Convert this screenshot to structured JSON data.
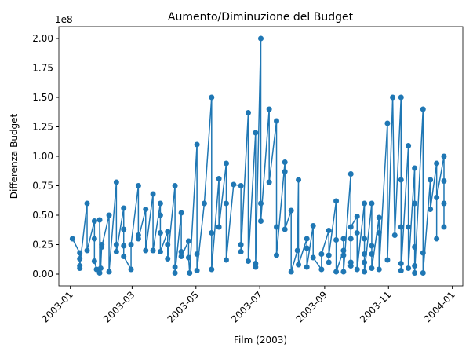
{
  "chart_data": {
    "type": "line",
    "title": "Aumento/Diminuzione del Budget",
    "xlabel": "Film (2003)",
    "ylabel": "Differenza Budget",
    "y_offset_text": "1e8",
    "x": [
      2,
      9,
      9,
      9,
      9,
      16,
      16,
      23,
      23,
      23,
      25,
      28,
      28,
      29,
      30,
      30,
      37,
      37,
      44,
      44,
      44,
      51,
      51,
      51,
      51,
      58,
      58,
      65,
      65,
      65,
      72,
      72,
      79,
      79,
      86,
      86,
      86,
      86,
      93,
      93,
      93,
      100,
      100,
      100,
      106,
      106,
      106,
      113,
      113,
      114,
      121,
      121,
      121,
      128,
      135,
      135,
      135,
      142,
      142,
      149,
      149,
      149,
      156,
      163,
      163,
      163,
      170,
      170,
      177,
      177,
      177,
      182,
      182,
      182,
      190,
      190,
      197,
      197,
      197,
      205,
      205,
      205,
      211,
      211,
      217,
      218,
      218,
      226,
      226,
      226,
      232,
      232,
      240,
      240,
      247,
      247,
      247,
      254,
      254,
      254,
      261,
      261,
      261,
      261,
      268,
      268,
      268,
      268,
      268,
      274,
      274,
      274,
      281,
      281,
      281,
      281,
      281,
      288,
      288,
      288,
      288,
      295,
      295,
      295,
      303,
      303,
      308,
      310,
      316,
      316,
      316,
      316,
      316,
      323,
      323,
      323,
      329,
      329,
      329,
      329,
      329,
      337,
      337,
      337,
      344,
      344,
      350,
      350,
      350,
      357,
      357,
      357,
      357
    ],
    "series": [
      {
        "name": "Differenza Budget",
        "color": "#1f77b4",
        "values": [
          0.3,
          0.18,
          0.13,
          0.05,
          0.07,
          0.6,
          0.2,
          0.45,
          0.3,
          0.11,
          0.04,
          0.01,
          0.46,
          0.05,
          0.25,
          0.23,
          0.5,
          0.02,
          0.78,
          0.25,
          0.19,
          0.56,
          0.38,
          0.24,
          0.15,
          0.04,
          0.25,
          0.75,
          0.33,
          0.3,
          0.55,
          0.2,
          0.68,
          0.2,
          0.6,
          0.5,
          0.35,
          0.19,
          0.36,
          0.25,
          0.13,
          0.75,
          0.06,
          0.01,
          0.52,
          0.19,
          0.15,
          0.28,
          0.14,
          0.01,
          1.1,
          0.17,
          0.03,
          0.6,
          1.5,
          0.35,
          0.04,
          0.81,
          0.4,
          0.94,
          0.6,
          0.12,
          0.76,
          0.75,
          0.25,
          0.19,
          1.37,
          0.11,
          1.2,
          0.09,
          0.06,
          2.0,
          0.6,
          0.45,
          1.4,
          0.78,
          1.3,
          0.4,
          0.16,
          0.95,
          0.87,
          0.38,
          0.54,
          0.02,
          0.2,
          0.8,
          0.08,
          0.3,
          0.22,
          0.06,
          0.41,
          0.14,
          0.04,
          0.17,
          0.37,
          0.1,
          0.16,
          0.62,
          0.29,
          0.02,
          0.2,
          0.3,
          0.16,
          0.02,
          0.85,
          0.3,
          0.1,
          0.07,
          0.4,
          0.49,
          0.35,
          0.04,
          0.6,
          0.3,
          0.17,
          0.1,
          0.02,
          0.6,
          0.24,
          0.17,
          0.05,
          0.48,
          0.35,
          0.04,
          1.28,
          0.12,
          1.5,
          0.33,
          1.5,
          0.8,
          0.4,
          0.09,
          0.03,
          1.09,
          0.4,
          0.05,
          0.9,
          0.6,
          0.23,
          0.07,
          0.01,
          1.4,
          0.18,
          0.01,
          0.8,
          0.55,
          0.94,
          0.3,
          0.65,
          1.0,
          0.79,
          0.6,
          0.4
        ]
      }
    ],
    "xlim": [
      -11,
      375
    ],
    "ylim": [
      -0.1,
      2.1
    ],
    "xticks": [
      {
        "value": 0,
        "label": "2003-01"
      },
      {
        "value": 59,
        "label": "2003-03"
      },
      {
        "value": 120,
        "label": "2003-05"
      },
      {
        "value": 181,
        "label": "2003-07"
      },
      {
        "value": 243,
        "label": "2003-09"
      },
      {
        "value": 304,
        "label": "2003-11"
      },
      {
        "value": 365,
        "label": "2004-01"
      }
    ],
    "yticks": [
      {
        "value": 0,
        "label": "0.00"
      },
      {
        "value": 0.25,
        "label": "0.25"
      },
      {
        "value": 0.5,
        "label": "0.50"
      },
      {
        "value": 0.75,
        "label": "0.75"
      },
      {
        "value": 1,
        "label": "1.00"
      },
      {
        "value": 1.25,
        "label": "1.25"
      },
      {
        "value": 1.5,
        "label": "1.50"
      },
      {
        "value": 1.75,
        "label": "1.75"
      },
      {
        "value": 2,
        "label": "2.00"
      }
    ],
    "grid": false,
    "marker": true
  }
}
